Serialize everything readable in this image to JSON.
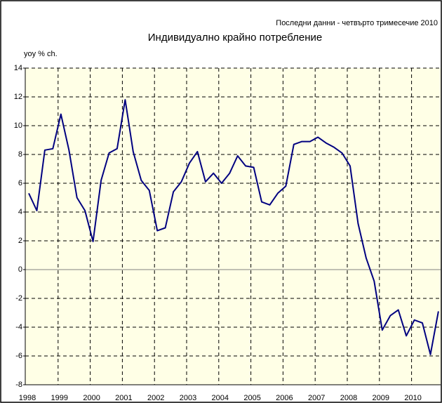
{
  "chart_data": {
    "type": "line",
    "subtitle": "Последни данни - четвърто тримесечие 2010",
    "title": "Индивидуално крайно потребление",
    "y_label": "yoy % ch.",
    "categories": [
      "1998",
      null,
      null,
      null,
      "1999",
      null,
      null,
      null,
      "2000",
      null,
      null,
      null,
      "2001",
      null,
      null,
      null,
      "2002",
      null,
      null,
      null,
      "2003",
      null,
      null,
      null,
      "2004",
      null,
      null,
      null,
      "2005",
      null,
      null,
      null,
      "2006",
      null,
      null,
      null,
      "2007",
      null,
      null,
      null,
      "2008",
      null,
      null,
      null,
      "2009",
      null,
      null,
      null,
      "2010",
      null,
      null,
      null
    ],
    "series": [
      {
        "name": "Индивидуално крайно потребление",
        "color": "#000080",
        "values": [
          5.3,
          4.1,
          8.3,
          8.4,
          10.8,
          8.3,
          5.0,
          4.1,
          1.95,
          6.2,
          8.1,
          8.4,
          11.8,
          8.2,
          6.2,
          5.5,
          2.7,
          2.9,
          5.4,
          6.1,
          7.4,
          8.2,
          6.1,
          6.7,
          6.0,
          6.7,
          7.9,
          7.2,
          7.1,
          4.7,
          4.5,
          5.3,
          5.8,
          8.7,
          8.9,
          8.9,
          9.2,
          8.8,
          8.5,
          8.1,
          7.2,
          3.2,
          0.8,
          -0.8,
          -4.2,
          -3.2,
          -2.8,
          -4.6,
          -3.5,
          -3.7,
          -5.9,
          -2.9
        ]
      }
    ],
    "ylim": [
      -8,
      14
    ],
    "yticks": [
      -8,
      -6,
      -4,
      -2,
      0,
      2,
      4,
      6,
      8,
      10,
      12,
      14
    ],
    "grid": true
  }
}
